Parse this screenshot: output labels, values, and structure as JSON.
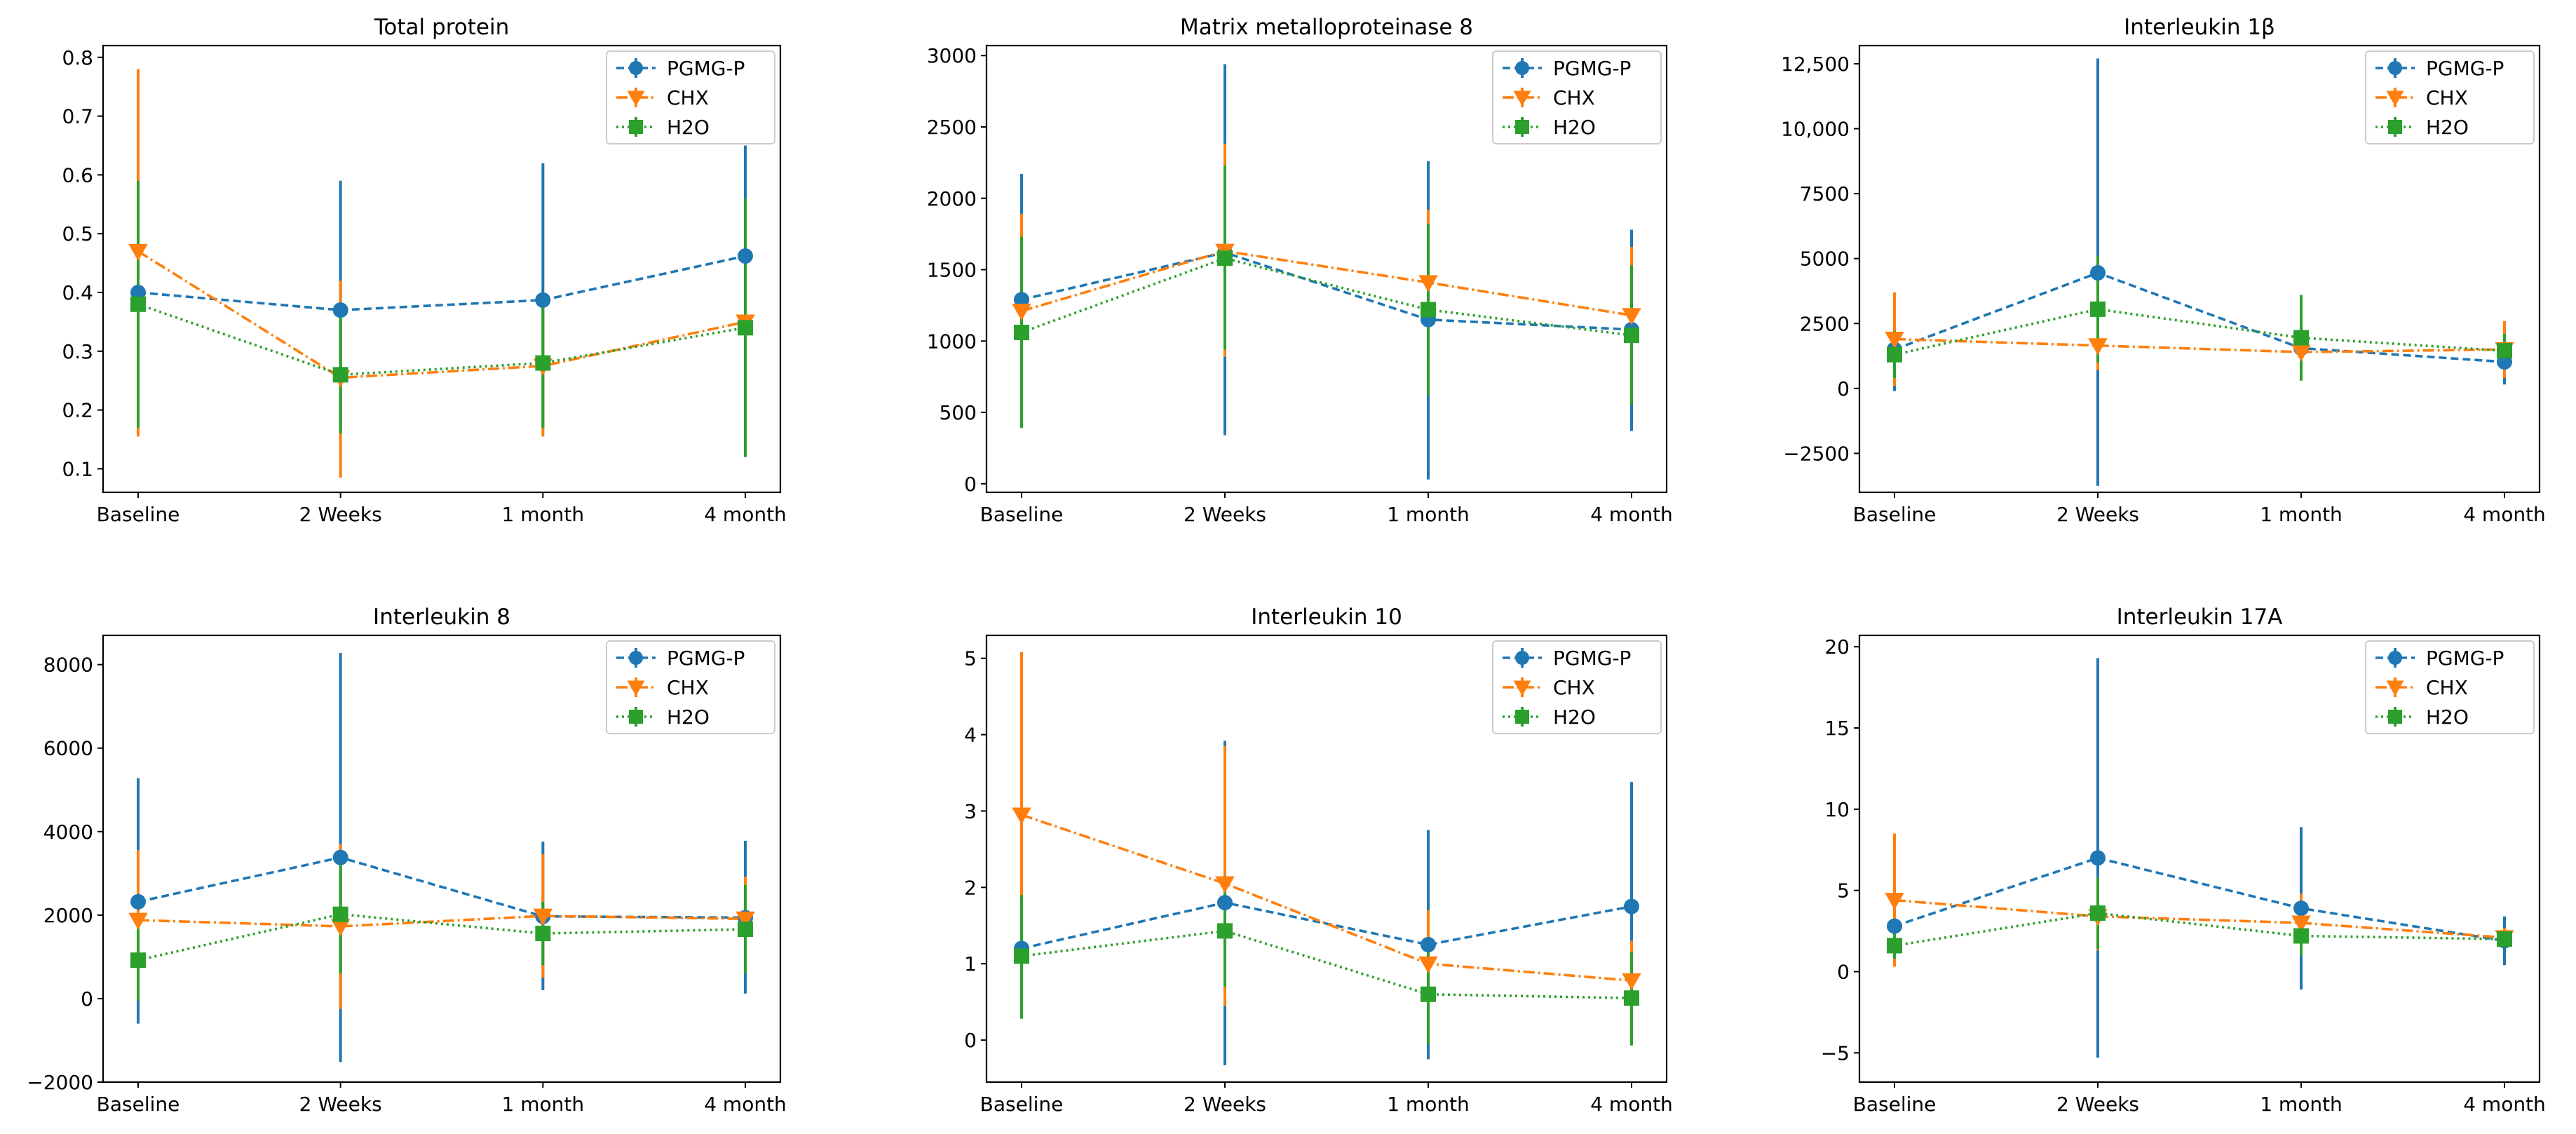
{
  "figure": {
    "bg": "#ffffff"
  },
  "series_style": [
    {
      "name": "PGMG-P",
      "color": "#1f77b4",
      "marker": "circle",
      "dash": "11,6"
    },
    {
      "name": "CHX",
      "color": "#ff7f0e",
      "marker": "triangle-down",
      "dash": "16,5,3,5"
    },
    {
      "name": "H2O",
      "color": "#2ca02c",
      "marker": "square",
      "dash": "3,5"
    }
  ],
  "chart_data": [
    {
      "type": "line",
      "title": "Total protein",
      "categories": [
        "Baseline",
        "2 Weeks",
        "1 month",
        "4 month"
      ],
      "ylim": [
        0.06,
        0.82
      ],
      "yticks": [
        0.1,
        0.2,
        0.3,
        0.4,
        0.5,
        0.6,
        0.7,
        0.8
      ],
      "ytick_labels": [
        "0.1",
        "0.2",
        "0.3",
        "0.4",
        "0.5",
        "0.6",
        "0.7",
        "0.8"
      ],
      "legend": "top-right",
      "series": [
        {
          "name": "PGMG-P",
          "values": [
            0.4,
            0.37,
            0.387,
            0.462
          ],
          "err_low": [
            0.16,
            0.17,
            0.17,
            0.27
          ],
          "err_high": [
            0.6,
            0.59,
            0.62,
            0.65
          ]
        },
        {
          "name": "CHX",
          "values": [
            0.47,
            0.255,
            0.275,
            0.35
          ],
          "err_low": [
            0.155,
            0.085,
            0.155,
            0.21
          ],
          "err_high": [
            0.78,
            0.42,
            0.39,
            0.49
          ]
        },
        {
          "name": "H2O",
          "values": [
            0.38,
            0.26,
            0.28,
            0.34
          ],
          "err_low": [
            0.17,
            0.16,
            0.17,
            0.12
          ],
          "err_high": [
            0.59,
            0.36,
            0.39,
            0.56
          ]
        }
      ]
    },
    {
      "type": "line",
      "title": "Matrix metalloproteinase 8",
      "categories": [
        "Baseline",
        "2 Weeks",
        "1 month",
        "4 month"
      ],
      "ylim": [
        -60,
        3070
      ],
      "yticks": [
        0,
        500,
        1000,
        1500,
        2000,
        2500,
        3000
      ],
      "ytick_labels": [
        "0",
        "500",
        "1000",
        "1500",
        "2000",
        "2500",
        "3000"
      ],
      "legend": "top-right",
      "series": [
        {
          "name": "PGMG-P",
          "values": [
            1290,
            1620,
            1150,
            1080
          ],
          "err_low": [
            400,
            340,
            30,
            370
          ],
          "err_high": [
            2170,
            2940,
            2260,
            1780
          ]
        },
        {
          "name": "CHX",
          "values": [
            1210,
            1630,
            1410,
            1180
          ],
          "err_low": [
            540,
            890,
            900,
            700
          ],
          "err_high": [
            1890,
            2380,
            1920,
            1660
          ]
        },
        {
          "name": "H2O",
          "values": [
            1060,
            1580,
            1220,
            1040
          ],
          "err_low": [
            390,
            940,
            620,
            550
          ],
          "err_high": [
            1730,
            2230,
            1820,
            1530
          ]
        }
      ]
    },
    {
      "type": "line",
      "title": "Interleukin 1β",
      "categories": [
        "Baseline",
        "2 Weeks",
        "1 month",
        "4 month"
      ],
      "ylim": [
        -4000,
        13200
      ],
      "yticks": [
        -2500,
        0,
        2500,
        5000,
        7500,
        10000,
        12500
      ],
      "ytick_labels": [
        "−2500",
        "0",
        "2500",
        "5000",
        "7500",
        "10,000",
        "12,500"
      ],
      "legend": "top-right",
      "series": [
        {
          "name": "PGMG-P",
          "values": [
            1500,
            4450,
            1550,
            1020
          ],
          "err_low": [
            -100,
            -3750,
            900,
            150
          ],
          "err_high": [
            3100,
            12700,
            2200,
            1900
          ]
        },
        {
          "name": "CHX",
          "values": [
            1900,
            1650,
            1400,
            1500
          ],
          "err_low": [
            100,
            700,
            900,
            400
          ],
          "err_high": [
            3700,
            2600,
            1900,
            2600
          ]
        },
        {
          "name": "H2O",
          "values": [
            1300,
            3050,
            1950,
            1450
          ],
          "err_low": [
            400,
            1000,
            300,
            800
          ],
          "err_high": [
            2200,
            5100,
            3600,
            2100
          ]
        }
      ]
    },
    {
      "type": "line",
      "title": "Interleukin 8",
      "categories": [
        "Baseline",
        "2 Weeks",
        "1 month",
        "4 month"
      ],
      "ylim": [
        -2000,
        8700
      ],
      "yticks": [
        -2000,
        0,
        2000,
        4000,
        6000,
        8000
      ],
      "ytick_labels": [
        "−2000",
        "0",
        "2000",
        "4000",
        "6000",
        "8000"
      ],
      "legend": "top-right",
      "series": [
        {
          "name": "PGMG-P",
          "values": [
            2320,
            3380,
            1970,
            1940
          ],
          "err_low": [
            -600,
            -1520,
            200,
            120
          ],
          "err_high": [
            5280,
            8280,
            3760,
            3780
          ]
        },
        {
          "name": "CHX",
          "values": [
            1880,
            1730,
            1980,
            1910
          ],
          "err_low": [
            200,
            -250,
            500,
            900
          ],
          "err_high": [
            3560,
            3710,
            3460,
            2920
          ]
        },
        {
          "name": "H2O",
          "values": [
            920,
            2020,
            1560,
            1660
          ],
          "err_low": [
            -50,
            600,
            800,
            600
          ],
          "err_high": [
            1890,
            3440,
            2320,
            2720
          ]
        }
      ]
    },
    {
      "type": "line",
      "title": "Interleukin 10",
      "categories": [
        "Baseline",
        "2 Weeks",
        "1 month",
        "4 month"
      ],
      "ylim": [
        -0.55,
        5.3
      ],
      "yticks": [
        0,
        1,
        2,
        3,
        4,
        5
      ],
      "ytick_labels": [
        "0",
        "1",
        "2",
        "3",
        "4",
        "5"
      ],
      "legend": "top-right",
      "series": [
        {
          "name": "PGMG-P",
          "values": [
            1.2,
            1.8,
            1.25,
            1.75
          ],
          "err_low": [
            0.45,
            -0.33,
            -0.25,
            0.1
          ],
          "err_high": [
            1.95,
            3.92,
            2.75,
            3.38
          ]
        },
        {
          "name": "CHX",
          "values": [
            2.95,
            2.05,
            1.0,
            0.78
          ],
          "err_low": [
            0.8,
            0.45,
            0.3,
            0.25
          ],
          "err_high": [
            5.08,
            3.85,
            1.7,
            1.3
          ]
        },
        {
          "name": "H2O",
          "values": [
            1.1,
            1.43,
            0.6,
            0.55
          ],
          "err_low": [
            0.28,
            0.7,
            -0.05,
            -0.07
          ],
          "err_high": [
            1.9,
            2.15,
            1.25,
            1.15
          ]
        }
      ]
    },
    {
      "type": "line",
      "title": "Interleukin 17A",
      "categories": [
        "Baseline",
        "2 Weeks",
        "1 month",
        "4 month"
      ],
      "ylim": [
        -6.8,
        20.7
      ],
      "yticks": [
        -5,
        0,
        5,
        10,
        15,
        20
      ],
      "ytick_labels": [
        "−5",
        "0",
        "5",
        "10",
        "15",
        "20"
      ],
      "legend": "top-right",
      "series": [
        {
          "name": "PGMG-P",
          "values": [
            2.8,
            7.0,
            3.9,
            1.9
          ],
          "err_low": [
            1.2,
            -5.3,
            -1.1,
            0.4
          ],
          "err_high": [
            4.4,
            19.3,
            8.9,
            3.4
          ]
        },
        {
          "name": "CHX",
          "values": [
            4.4,
            3.4,
            3.0,
            2.1
          ],
          "err_low": [
            0.3,
            1.3,
            1.2,
            1.5
          ],
          "err_high": [
            8.5,
            5.5,
            4.8,
            2.7
          ]
        },
        {
          "name": "H2O",
          "values": [
            1.6,
            3.6,
            2.2,
            2.0
          ],
          "err_low": [
            0.8,
            1.4,
            1.0,
            1.5
          ],
          "err_high": [
            2.4,
            5.8,
            3.4,
            2.5
          ]
        }
      ]
    }
  ]
}
